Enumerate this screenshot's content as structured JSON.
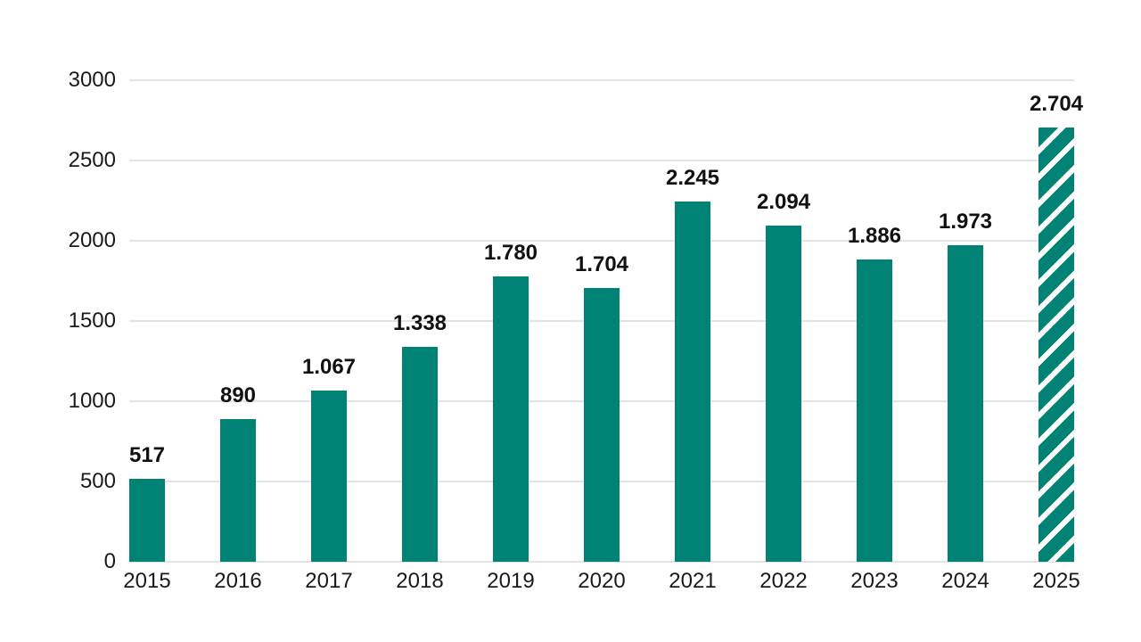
{
  "chart_data": {
    "type": "bar",
    "categories": [
      "2015",
      "2016",
      "2017",
      "2018",
      "2019",
      "2020",
      "2021",
      "2022",
      "2023",
      "2024",
      "2025"
    ],
    "values": [
      517,
      890,
      1067,
      1338,
      1780,
      1704,
      2245,
      2094,
      1886,
      1973,
      2704
    ],
    "bar_labels": [
      "517",
      "890",
      "1.067",
      "1.338",
      "1.780",
      "1.704",
      "2.245",
      "2.094",
      "1.886",
      "1.973",
      "2.704"
    ],
    "ylim": [
      0,
      3000
    ],
    "yticks": [
      0,
      500,
      1000,
      1500,
      2000,
      2500,
      3000
    ],
    "ytick_labels": [
      "0",
      "500",
      "1000",
      "1500",
      "2000",
      "2500",
      "3000"
    ],
    "grid": true,
    "legend": "none",
    "bar_color": "#008374",
    "hatched_categories": [
      "2025"
    ],
    "hatch_description": "white diagonal stripes rising to the right",
    "background_color": "#ffffff",
    "gridline_color": "#e3e3e3",
    "tick_label_color": "#1a1a1a",
    "bar_label_color": "#111111"
  }
}
